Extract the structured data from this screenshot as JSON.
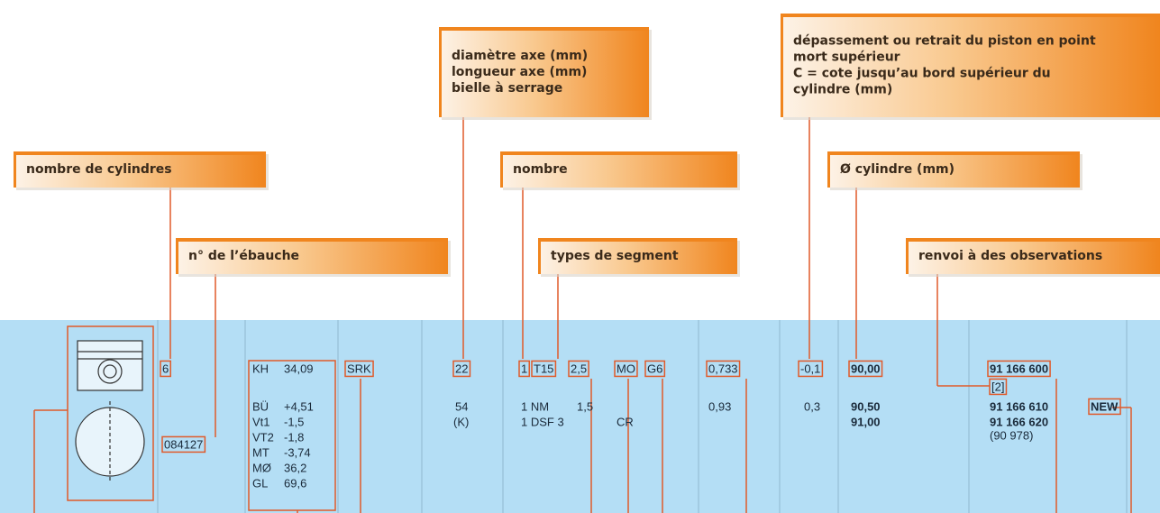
{
  "callouts": [
    {
      "lines": [
        "nombre de cylindres"
      ]
    },
    {
      "lines": [
        "n° de l’ébauche"
      ]
    },
    {
      "lines": [
        "diamètre axe (mm)",
        "longueur axe (mm)",
        "bielle à serrage"
      ]
    },
    {
      "lines": [
        "nombre"
      ]
    },
    {
      "lines": [
        "types de segment"
      ]
    },
    {
      "lines": [
        "dépassement ou retrait du piston en point",
        "mort supérieur",
        "C = cote jusqu’au bord supérieur du",
        "cylindre (mm)"
      ]
    },
    {
      "lines": [
        "Ø cylindre (mm)"
      ]
    },
    {
      "lines": [
        "renvoi à des observations"
      ]
    }
  ],
  "row": {
    "cylinders": "6",
    "blank_no": "084127",
    "dimensions": [
      [
        "KH",
        "34,09"
      ],
      [
        "BÜ",
        "+4,51"
      ],
      [
        "Vt1",
        "-1,5"
      ],
      [
        "VT2",
        "-1,8"
      ],
      [
        "MT",
        "-3,74"
      ],
      [
        "MØ",
        "36,2"
      ],
      [
        "GL",
        "69,6"
      ]
    ],
    "piston_type": "SRK",
    "pin": [
      "22",
      "54",
      "(K)"
    ],
    "rings": [
      [
        "1",
        "T15",
        "2,5",
        "MO",
        "G6"
      ],
      [
        "1 NM",
        "1,5"
      ],
      [
        "1 DSF 3",
        "CR"
      ]
    ],
    "protrusion_a": [
      "0,733",
      "0,93"
    ],
    "protrusion_b": [
      "-0,1",
      "0,3"
    ],
    "bore": [
      "90,00",
      "90,50",
      "91,00"
    ],
    "parts": [
      "91 166 600",
      "[2]",
      "91 166 610",
      "NEW",
      "91 166 620",
      "(90 978)"
    ]
  }
}
